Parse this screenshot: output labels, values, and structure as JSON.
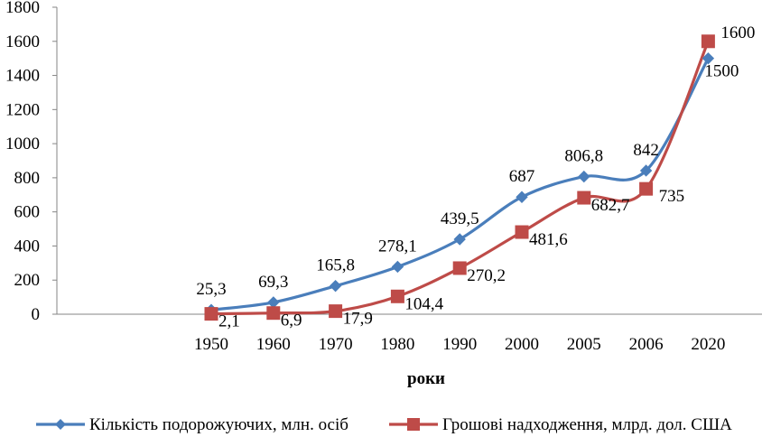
{
  "chart_data": {
    "type": "line",
    "categories": [
      "1950",
      "1960",
      "1970",
      "1980",
      "1990",
      "2000",
      "2005",
      "2006",
      "2020"
    ],
    "xlabel": "роки",
    "ylabel": "",
    "ylim": [
      0,
      1800
    ],
    "yticks": [
      0,
      200,
      400,
      600,
      800,
      1000,
      1200,
      1400,
      1600,
      1800
    ],
    "grid": false,
    "smooth": true,
    "legend_position": "bottom",
    "series": [
      {
        "name": "Кількість подорожуючих, млн. осіб",
        "color": "#4A7EBB",
        "marker": "diamond",
        "values": [
          25.3,
          69.3,
          165.8,
          278.1,
          439.5,
          687,
          806.8,
          842,
          1500
        ],
        "labels": [
          "25,3",
          "69,3",
          "165,8",
          "278,1",
          "439,5",
          "687",
          "806,8",
          "842",
          "1500"
        ]
      },
      {
        "name": "Грошові надходження, млрд. дол. США",
        "color": "#BE4B48",
        "marker": "square",
        "values": [
          2.1,
          6.9,
          17.9,
          104.4,
          270.2,
          481.6,
          682.7,
          735,
          1600
        ],
        "labels": [
          "2,1",
          "6,9",
          "17,9",
          "104,4",
          "270,2",
          "481,6",
          "682,7",
          "735",
          "1600"
        ]
      }
    ]
  }
}
